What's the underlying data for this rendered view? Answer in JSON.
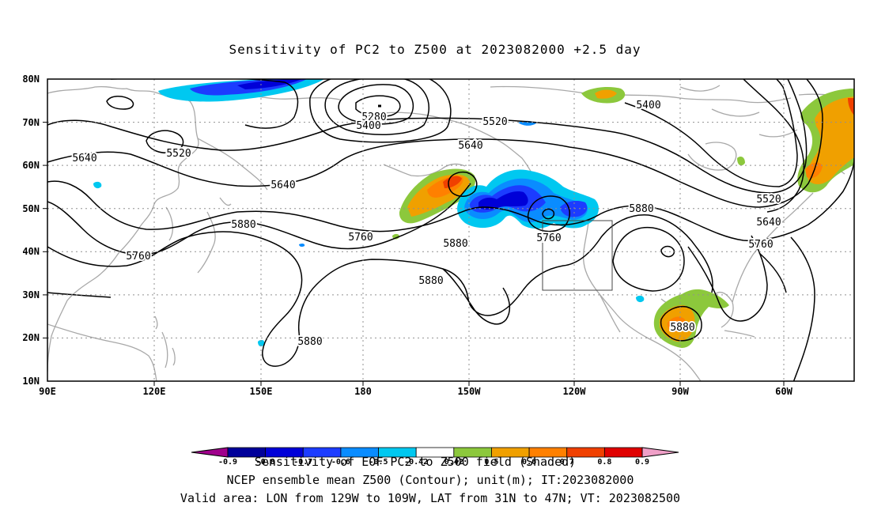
{
  "title": "Sensitivity of PC2 to Z500 at 2023082000 +2.5 day",
  "axes": {
    "lat_labels": [
      "80N",
      "70N",
      "60N",
      "50N",
      "40N",
      "30N",
      "20N",
      "10N"
    ],
    "lon_labels": [
      "90E",
      "120E",
      "150E",
      "180",
      "150W",
      "120W",
      "90W",
      "60W"
    ]
  },
  "contour_labels": [
    {
      "value": "5280"
    },
    {
      "value": "5400"
    },
    {
      "value": "5520"
    },
    {
      "value": "5400"
    },
    {
      "value": "5520"
    },
    {
      "value": "5640"
    },
    {
      "value": "5640"
    },
    {
      "value": "5640"
    },
    {
      "value": "5520"
    },
    {
      "value": "5640"
    },
    {
      "value": "5760"
    },
    {
      "value": "5880"
    },
    {
      "value": "5880"
    },
    {
      "value": "5760"
    },
    {
      "value": "5760"
    },
    {
      "value": "5880"
    },
    {
      "value": "5880"
    },
    {
      "value": "5880"
    },
    {
      "value": "5760"
    },
    {
      "value": "5880"
    }
  ],
  "colorbar": {
    "colors": [
      "#a0008c",
      "#00009a",
      "#0000d8",
      "#1c3cff",
      "#0a8cff",
      "#00c8f0",
      "#ffffff",
      "#8cc83c",
      "#f0a000",
      "#ff8000",
      "#f04000",
      "#e00000",
      "#f0a0c8"
    ],
    "labels": [
      "-0.9",
      "-0.8",
      "-0.7",
      "-0.6",
      "-0.5",
      "-0.42",
      "0.42",
      "0.5",
      "0.6",
      "0.7",
      "0.8",
      "0.9"
    ]
  },
  "captions": {
    "line1": "Sensitivity of EOF PC2 to Z500 field (Shaded)",
    "line2": "NCEP ensemble mean Z500 (Contour); unit(m); IT:2023082000",
    "line3": "Valid area: LON from 129W to 109W, LAT from 31N to 47N; VT: 2023082500"
  },
  "valid_box": {
    "lon_min": "129W",
    "lon_max": "109W",
    "lat_min": "31N",
    "lat_max": "47N"
  }
}
